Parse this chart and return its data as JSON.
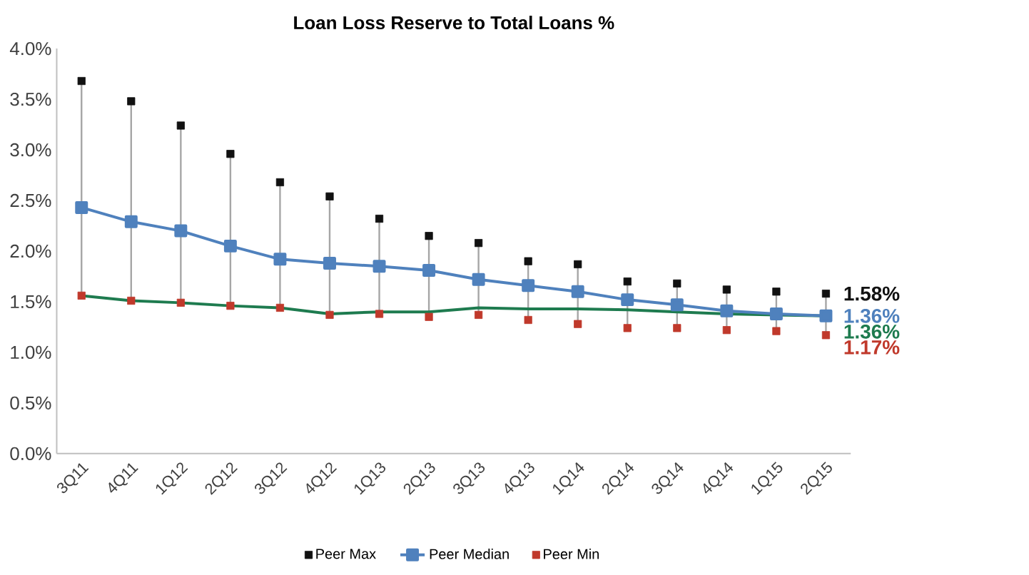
{
  "chart_data": {
    "type": "line",
    "title": "Loan Loss Reserve to Total Loans %",
    "categories": [
      "3Q11",
      "4Q11",
      "1Q12",
      "2Q12",
      "3Q12",
      "4Q12",
      "1Q13",
      "2Q13",
      "3Q13",
      "4Q13",
      "1Q14",
      "2Q14",
      "3Q14",
      "4Q14",
      "1Q15",
      "2Q15"
    ],
    "ylim": [
      0,
      4.0
    ],
    "yticks": [
      {
        "value": 0,
        "label": "0.0%"
      },
      {
        "value": 0.5,
        "label": "0.5%"
      },
      {
        "value": 1.0,
        "label": "1.0%"
      },
      {
        "value": 1.5,
        "label": "1.5%"
      },
      {
        "value": 2.0,
        "label": "2.0%"
      },
      {
        "value": 2.5,
        "label": "2.5%"
      },
      {
        "value": 3.0,
        "label": "3.0%"
      },
      {
        "value": 3.5,
        "label": "3.5%"
      },
      {
        "value": 4.0,
        "label": "4.0%"
      }
    ],
    "legend": "bottom",
    "series": [
      {
        "color": "#1e7b4f",
        "marker": "none",
        "values": [
          1.56,
          1.51,
          1.49,
          1.46,
          1.44,
          1.38,
          1.4,
          1.4,
          1.44,
          1.43,
          1.43,
          1.42,
          1.4,
          1.38,
          1.37,
          1.36
        ],
        "value_labels": [
          null,
          null,
          null,
          null,
          null,
          null,
          null,
          null,
          null,
          null,
          null,
          null,
          null,
          null,
          null,
          "1.36%"
        ]
      },
      {
        "name": "Peer Max",
        "type": "scatter",
        "color": "#111111",
        "marker": "square",
        "values": [
          3.68,
          3.48,
          3.24,
          2.96,
          2.68,
          2.54,
          2.32,
          2.15,
          2.08,
          1.9,
          1.87,
          1.7,
          1.68,
          1.62,
          1.6,
          1.58
        ],
        "value_labels": [
          null,
          null,
          null,
          null,
          null,
          null,
          null,
          null,
          null,
          null,
          null,
          null,
          null,
          null,
          null,
          "1.58%"
        ]
      },
      {
        "name": "Peer Median",
        "color": "#4f81bd",
        "marker": "square",
        "values": [
          2.43,
          2.29,
          2.2,
          2.05,
          1.92,
          1.88,
          1.85,
          1.81,
          1.72,
          1.66,
          1.6,
          1.52,
          1.47,
          1.41,
          1.38,
          1.36
        ],
        "value_labels": [
          null,
          null,
          null,
          null,
          null,
          null,
          null,
          null,
          null,
          null,
          null,
          null,
          null,
          null,
          null,
          "1.36%"
        ]
      },
      {
        "name": "Peer Min",
        "type": "scatter",
        "color": "#c0392b",
        "marker": "square",
        "values": [
          1.56,
          1.51,
          1.49,
          1.46,
          1.44,
          1.37,
          1.38,
          1.35,
          1.37,
          1.32,
          1.28,
          1.24,
          1.24,
          1.22,
          1.21,
          1.17
        ],
        "value_labels": [
          null,
          null,
          null,
          null,
          null,
          null,
          null,
          null,
          null,
          null,
          null,
          null,
          null,
          null,
          null,
          "1.17%"
        ]
      }
    ]
  }
}
